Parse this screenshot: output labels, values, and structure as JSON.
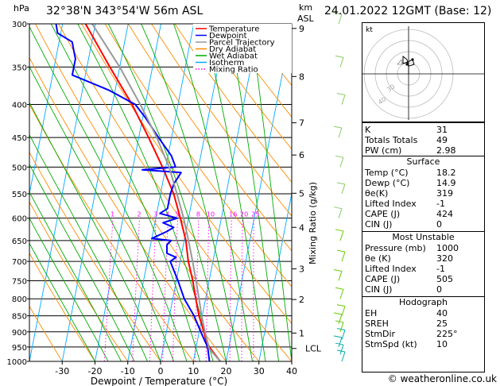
{
  "header": {
    "unit": "hPa",
    "location": "32°38'N  343°54'W  56m  ASL",
    "km_label": "km",
    "asl_label": "ASL",
    "datetime": "24.01.2022  12GMT  (Base: 12)"
  },
  "legend": [
    {
      "label": "Temperature",
      "color": "#ff0000"
    },
    {
      "label": "Dewpoint",
      "color": "#0000ff"
    },
    {
      "label": "Parcel Trajectory",
      "color": "#999999"
    },
    {
      "label": "Dry Adiabat",
      "color": "#ff8c00"
    },
    {
      "label": "Wet Adiabat",
      "color": "#00aa00"
    },
    {
      "label": "Isotherm",
      "color": "#00aaff"
    },
    {
      "label": "Mixing Ratio",
      "color": "#ff00ff"
    }
  ],
  "chart_data": {
    "type": "line",
    "xlabel": "Dewpoint / Temperature (°C)",
    "ylabel": "hPa",
    "right_axis_label": "Mixing Ratio (g/kg)",
    "x_ticks": [
      "-30",
      "-20",
      "-10",
      "0",
      "10",
      "20",
      "30",
      "40"
    ],
    "p_ticks": [
      "300",
      "350",
      "400",
      "450",
      "500",
      "550",
      "600",
      "650",
      "700",
      "750",
      "800",
      "850",
      "900",
      "950",
      "1000"
    ],
    "km_ticks": [
      {
        "km": "9",
        "p": 305
      },
      {
        "km": "8",
        "p": 362
      },
      {
        "km": "7",
        "p": 427
      },
      {
        "km": "6",
        "p": 479
      },
      {
        "km": "5",
        "p": 549
      },
      {
        "km": "4",
        "p": 620
      },
      {
        "km": "3",
        "p": 719
      },
      {
        "km": "2",
        "p": 802
      },
      {
        "km": "1",
        "p": 904
      }
    ],
    "lcl": {
      "label": "LCL",
      "p": 955
    },
    "mixing_ratio_labels": [
      "1",
      "2",
      "3",
      "4",
      "5",
      "8",
      "10",
      "16",
      "20",
      "25"
    ],
    "series": [
      {
        "name": "Temperature",
        "color": "#ff0000",
        "points": [
          [
            1000,
            18.2
          ],
          [
            950,
            14.0
          ],
          [
            925,
            12.5
          ],
          [
            900,
            11.5
          ],
          [
            850,
            9.0
          ],
          [
            800,
            7.0
          ],
          [
            750,
            5.0
          ],
          [
            700,
            2.5
          ],
          [
            650,
            0.5
          ],
          [
            600,
            -2.5
          ],
          [
            550,
            -6.0
          ],
          [
            500,
            -11.0
          ],
          [
            450,
            -17.0
          ],
          [
            400,
            -24.0
          ],
          [
            350,
            -33.0
          ],
          [
            300,
            -43.0
          ]
        ]
      },
      {
        "name": "Dewpoint",
        "color": "#0000ff",
        "points": [
          [
            1000,
            14.9
          ],
          [
            950,
            13.5
          ],
          [
            925,
            12.0
          ],
          [
            900,
            10.5
          ],
          [
            850,
            7.5
          ],
          [
            800,
            3.5
          ],
          [
            750,
            0.5
          ],
          [
            700,
            -3.0
          ],
          [
            690,
            -1.5
          ],
          [
            680,
            -4.5
          ],
          [
            660,
            -5.0
          ],
          [
            650,
            -4.0
          ],
          [
            645,
            -10.0
          ],
          [
            630,
            -6.0
          ],
          [
            620,
            -4.0
          ],
          [
            610,
            -7.5
          ],
          [
            600,
            -3.5
          ],
          [
            590,
            -9.0
          ],
          [
            580,
            -7.0
          ],
          [
            550,
            -7.0
          ],
          [
            530,
            -6.5
          ],
          [
            510,
            -5.0
          ],
          [
            505,
            -17.0
          ],
          [
            500,
            -7.0
          ],
          [
            480,
            -9.0
          ],
          [
            450,
            -14.0
          ],
          [
            420,
            -19.0
          ],
          [
            400,
            -23.0
          ],
          [
            380,
            -32.0
          ],
          [
            360,
            -44.0
          ],
          [
            340,
            -44.0
          ],
          [
            330,
            -45.0
          ],
          [
            320,
            -46.0
          ],
          [
            310,
            -51.0
          ],
          [
            300,
            -52.0
          ]
        ]
      },
      {
        "name": "Parcel Trajectory",
        "color": "#999999",
        "points": [
          [
            1000,
            18.2
          ],
          [
            955,
            14.0
          ],
          [
            900,
            11.8
          ],
          [
            850,
            9.8
          ],
          [
            800,
            8.0
          ],
          [
            750,
            6.0
          ],
          [
            700,
            3.8
          ],
          [
            650,
            1.3
          ],
          [
            600,
            -1.5
          ],
          [
            550,
            -5.0
          ],
          [
            500,
            -9.0
          ],
          [
            450,
            -14.5
          ],
          [
            400,
            -21.5
          ],
          [
            350,
            -30.0
          ],
          [
            300,
            -41.0
          ]
        ]
      }
    ],
    "wind_barbs_p": [
      1000,
      975,
      950,
      925,
      900,
      875,
      850,
      800,
      750,
      700,
      650,
      600,
      550,
      500,
      450,
      400,
      350,
      300
    ]
  },
  "hodograph": {
    "unit_label": "kt",
    "rings": [
      "40",
      "30"
    ]
  },
  "indices": {
    "top": [
      {
        "k": "K",
        "v": "31"
      },
      {
        "k": "Totals Totals",
        "v": "49"
      },
      {
        "k": "PW (cm)",
        "v": "2.98"
      }
    ],
    "surface_title": "Surface",
    "surface": [
      {
        "k": "Temp (°C)",
        "v": "18.2"
      },
      {
        "k": "Dewp (°C)",
        "v": "14.9"
      },
      {
        "k": "θe(K)",
        "v": "319"
      },
      {
        "k": "Lifted Index",
        "v": "-1"
      },
      {
        "k": "CAPE (J)",
        "v": "424"
      },
      {
        "k": "CIN (J)",
        "v": "0"
      }
    ],
    "unstable_title": "Most Unstable",
    "unstable": [
      {
        "k": "Pressure (mb)",
        "v": "1000"
      },
      {
        "k": "θe (K)",
        "v": "320"
      },
      {
        "k": "Lifted Index",
        "v": "-1"
      },
      {
        "k": "CAPE (J)",
        "v": "505"
      },
      {
        "k": "CIN (J)",
        "v": "0"
      }
    ],
    "hodo_title": "Hodograph",
    "hodo": [
      {
        "k": "EH",
        "v": "40"
      },
      {
        "k": "SREH",
        "v": "25"
      },
      {
        "k": "StmDir",
        "v": "225°"
      },
      {
        "k": "StmSpd (kt)",
        "v": "10"
      }
    ]
  },
  "footer": "© weatheronline.co.uk"
}
